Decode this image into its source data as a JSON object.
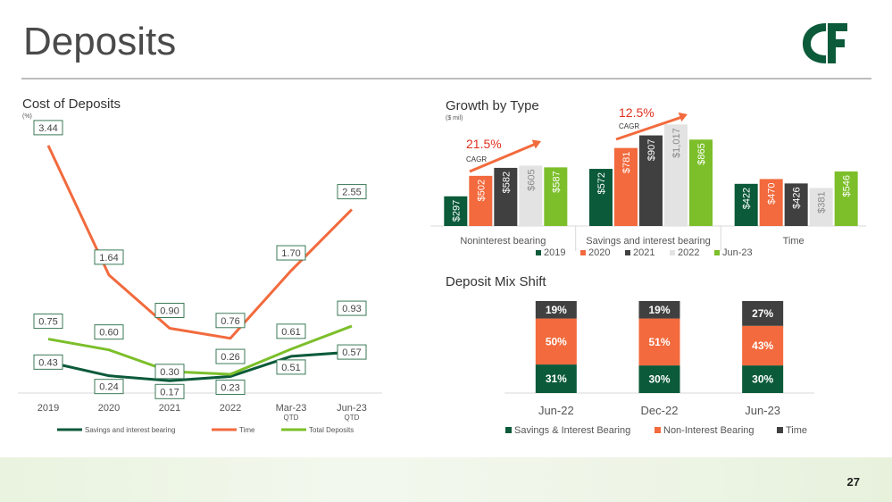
{
  "page": {
    "title": "Deposits",
    "page_number": "27",
    "logo_text": "C&F"
  },
  "colors": {
    "dark_green": "#0b5a3a",
    "orange": "#f26a3d",
    "dark_gray": "#404040",
    "light_gray": "#e3e3e3",
    "lime": "#7cbf2a",
    "title_gray": "#4a4a4a"
  },
  "chart_data": [
    {
      "id": "cost_of_deposits",
      "type": "line",
      "title": "Cost of Deposits",
      "subtitle": "(%)",
      "categories": [
        "2019",
        "2020",
        "2021",
        "2022",
        "Mar-23",
        "Jun-23"
      ],
      "category_sublabels": [
        "",
        "",
        "",
        "",
        "QTD",
        "QTD"
      ],
      "ylim": [
        0,
        3.6
      ],
      "series": [
        {
          "name": "Savings and interest bearing",
          "color": "#0b5a3a",
          "values": [
            0.43,
            0.24,
            0.17,
            0.23,
            0.51,
            0.57
          ],
          "labels": [
            "0.43",
            "0.24",
            "0.17",
            "0.23",
            "0.51",
            "0.57"
          ]
        },
        {
          "name": "Time",
          "color": "#f26a3d",
          "values": [
            3.44,
            1.64,
            0.9,
            0.76,
            1.7,
            2.55
          ],
          "labels": [
            "3.44",
            "1.64",
            "0.90",
            "0.76",
            "1.70",
            "2.55"
          ]
        },
        {
          "name": "Total Deposits",
          "color": "#7cbf2a",
          "values": [
            0.75,
            0.6,
            0.3,
            0.26,
            0.61,
            0.93
          ],
          "labels": [
            "0.75",
            "0.60",
            "0.30",
            "0.26",
            "0.61",
            "0.93"
          ]
        }
      ]
    },
    {
      "id": "growth_by_type",
      "type": "bar",
      "title": "Growth by Type",
      "subtitle": "($ mil)",
      "categories": [
        "Noninterest bearing",
        "Savings and interest bearing",
        "Time"
      ],
      "ylim": [
        0,
        1100
      ],
      "series": [
        {
          "name": "2019",
          "color": "#0b5a3a",
          "values": [
            297,
            572,
            422
          ],
          "labels": [
            "$297",
            "$572",
            "$422"
          ]
        },
        {
          "name": "2020",
          "color": "#f26a3d",
          "values": [
            502,
            781,
            470
          ],
          "labels": [
            "$502",
            "$781",
            "$470"
          ]
        },
        {
          "name": "2021",
          "color": "#404040",
          "values": [
            582,
            907,
            426
          ],
          "labels": [
            "$582",
            "$907",
            "$426"
          ]
        },
        {
          "name": "2022",
          "color": "#e3e3e3",
          "values": [
            605,
            1017,
            381
          ],
          "labels": [
            "$605",
            "$1,017",
            "$381"
          ]
        },
        {
          "name": "Jun-23",
          "color": "#7cbf2a",
          "values": [
            587,
            865,
            546
          ],
          "labels": [
            "$587",
            "$865",
            "$546"
          ]
        }
      ],
      "annotations": [
        {
          "category": "Noninterest bearing",
          "value": "21.5%",
          "label": "CAGR"
        },
        {
          "category": "Savings and interest bearing",
          "value": "12.5%",
          "label": "CAGR"
        }
      ]
    },
    {
      "id": "deposit_mix_shift",
      "type": "bar",
      "stacked": true,
      "title": "Deposit Mix Shift",
      "categories": [
        "Jun-22",
        "Dec-22",
        "Jun-23"
      ],
      "ylim": [
        0,
        100
      ],
      "series": [
        {
          "name": "Savings & Interest Bearing",
          "color": "#0b5a3a",
          "values": [
            31,
            30,
            30
          ],
          "labels": [
            "31%",
            "30%",
            "30%"
          ]
        },
        {
          "name": "Non-Interest Bearing",
          "color": "#f26a3d",
          "values": [
            50,
            51,
            43
          ],
          "labels": [
            "50%",
            "51%",
            "43%"
          ]
        },
        {
          "name": "Time",
          "color": "#404040",
          "values": [
            19,
            19,
            27
          ],
          "labels": [
            "19%",
            "19%",
            "27%"
          ]
        }
      ]
    }
  ]
}
